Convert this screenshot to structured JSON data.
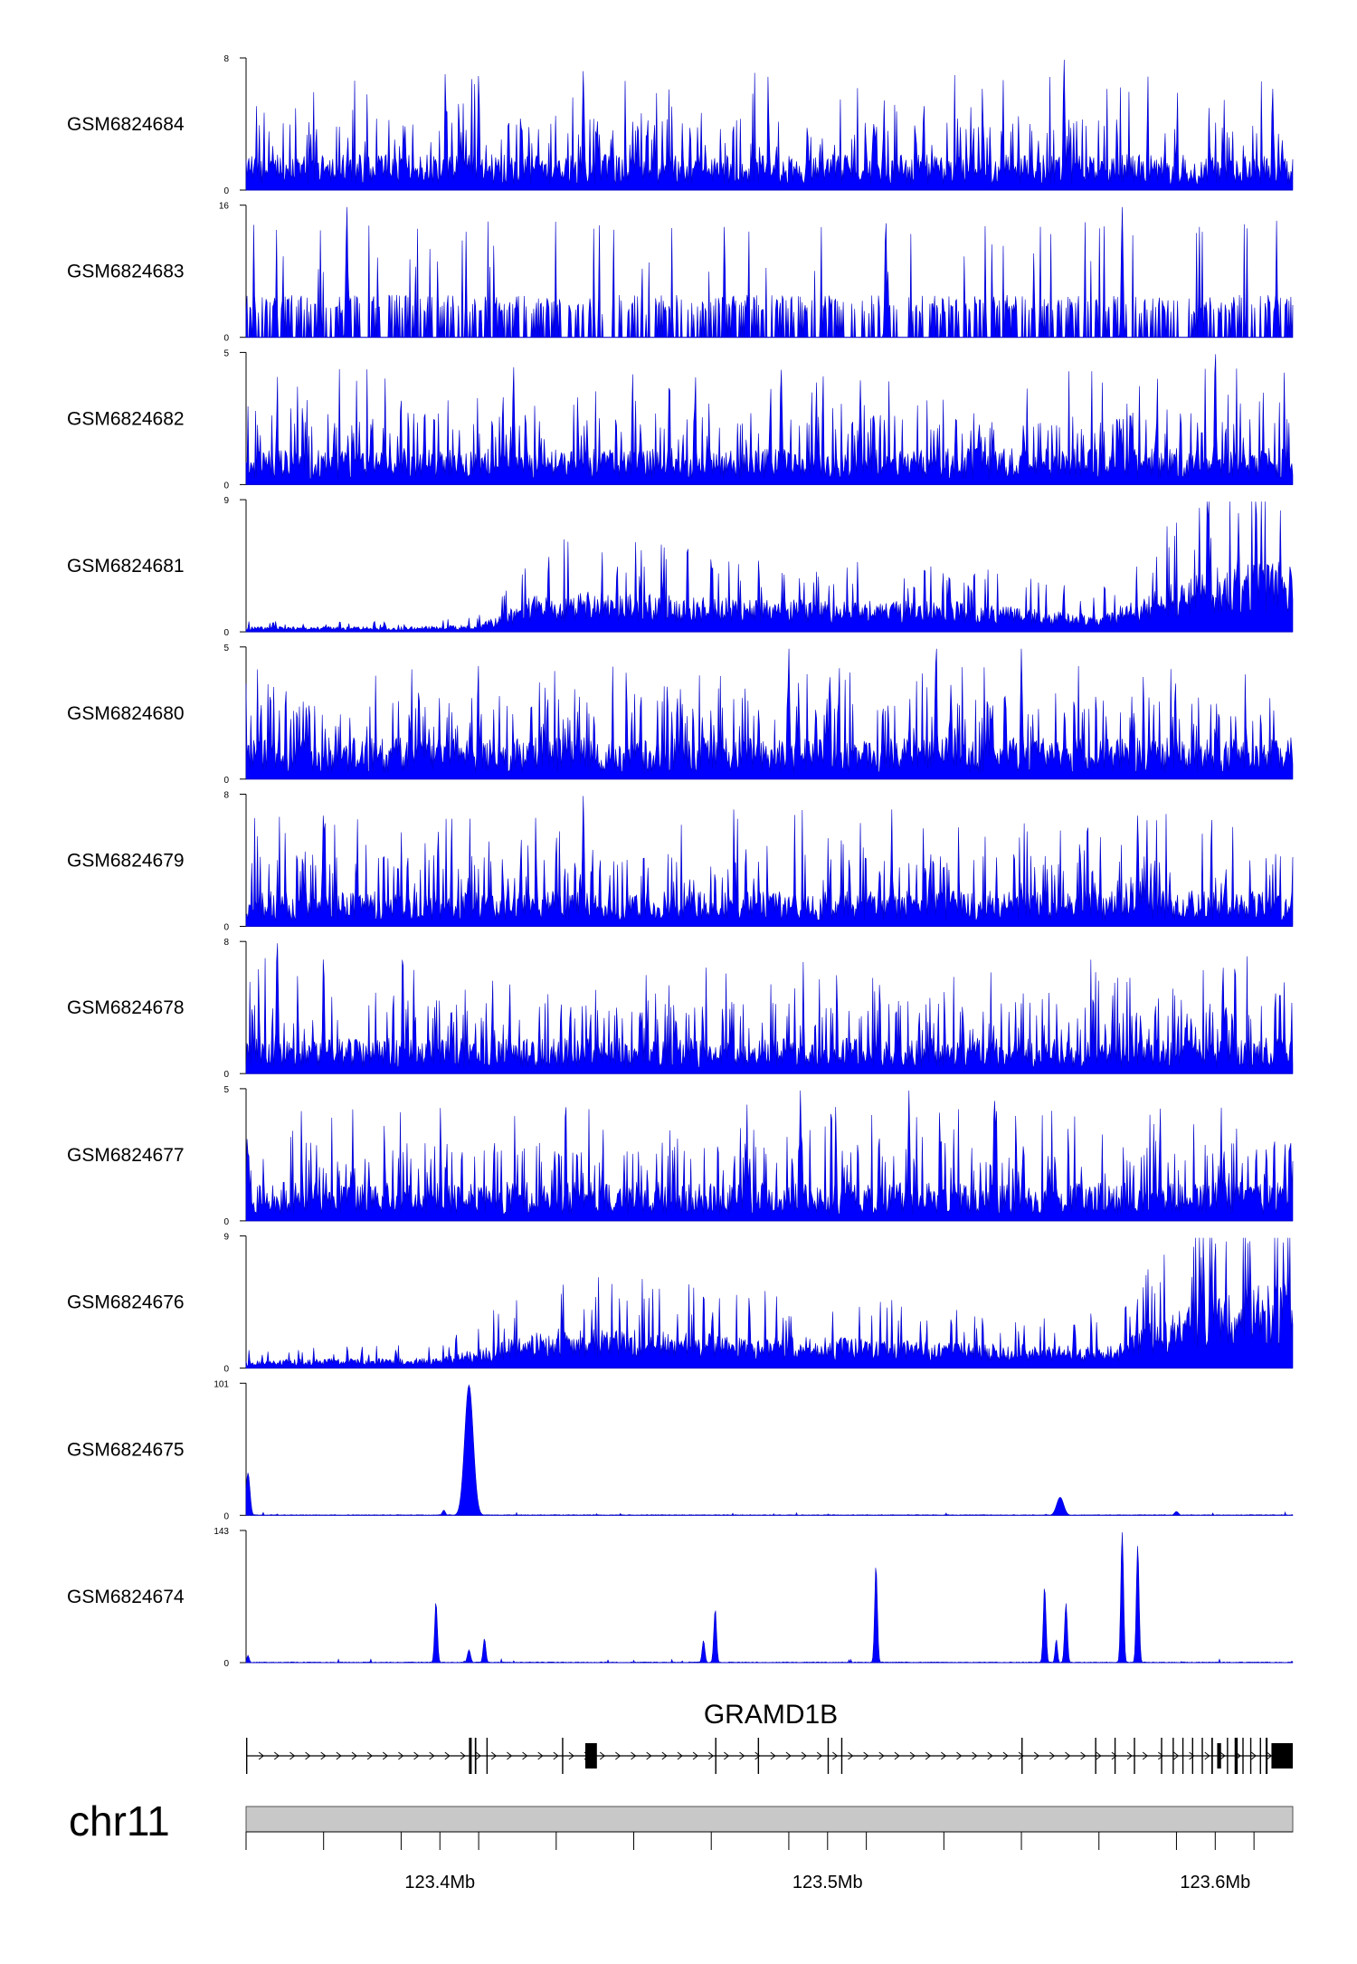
{
  "chart_data": {
    "type": "area",
    "chromosome": "chr11",
    "x_range": [
      123.35,
      123.62
    ],
    "x_unit": "Mb",
    "x_ticks": [
      123.35,
      123.37,
      123.39,
      123.41,
      123.43,
      123.45,
      123.47,
      123.49,
      123.51,
      123.53,
      123.55,
      123.57,
      123.59,
      123.61
    ],
    "x_tick_labels": [
      {
        "value": 123.4,
        "label": "123.4Mb"
      },
      {
        "value": 123.5,
        "label": "123.5Mb"
      },
      {
        "value": 123.6,
        "label": "123.6Mb"
      }
    ],
    "gene": {
      "name": "GRAMD1B",
      "strand": "+",
      "start": 123.35,
      "end": 123.62,
      "exons": [
        [
          123.35,
          123.3503
        ],
        [
          123.4075,
          123.4082
        ],
        [
          123.409,
          123.4094
        ],
        [
          123.412,
          123.4123
        ],
        [
          123.4315,
          123.4318
        ],
        [
          123.4375,
          123.4405
        ],
        [
          123.471,
          123.4713
        ],
        [
          123.482,
          123.4823
        ],
        [
          123.5,
          123.5003
        ],
        [
          123.5035,
          123.5038
        ],
        [
          123.55,
          123.5503
        ],
        [
          123.569,
          123.5693
        ],
        [
          123.574,
          123.5743
        ],
        [
          123.579,
          123.5793
        ],
        [
          123.586,
          123.5863
        ],
        [
          123.589,
          123.5893
        ],
        [
          123.5915,
          123.5918
        ],
        [
          123.594,
          123.5943
        ],
        [
          123.5965,
          123.5968
        ],
        [
          123.599,
          123.5994
        ],
        [
          123.6005,
          123.6015
        ],
        [
          123.603,
          123.6033
        ],
        [
          123.605,
          123.6058
        ],
        [
          123.607,
          123.6073
        ],
        [
          123.609,
          123.6093
        ],
        [
          123.6115,
          123.6118
        ],
        [
          123.613,
          123.6135
        ],
        [
          123.6145,
          123.62
        ]
      ]
    },
    "series": [
      {
        "name": "GSM6824684",
        "ymax": 8,
        "pattern": "noise",
        "base": 2.2,
        "spike_max": 8,
        "peaks": [
          {
            "x": 123.561,
            "y": 8
          },
          {
            "x": 123.437,
            "y": 7.3
          },
          {
            "x": 123.41,
            "y": 7
          }
        ]
      },
      {
        "name": "GSM6824683",
        "ymax": 16,
        "pattern": "sparse",
        "base": 4,
        "spike_max": 16,
        "peaks": [
          {
            "x": 123.376,
            "y": 16
          },
          {
            "x": 123.576,
            "y": 16
          },
          {
            "x": 123.515,
            "y": 14
          }
        ]
      },
      {
        "name": "GSM6824682",
        "ymax": 5,
        "pattern": "noise",
        "base": 1.4,
        "spike_max": 5,
        "peaks": [
          {
            "x": 123.6,
            "y": 5
          },
          {
            "x": 123.488,
            "y": 4.4
          },
          {
            "x": 123.419,
            "y": 4.5
          }
        ]
      },
      {
        "name": "GSM6824681",
        "ymax": 9,
        "pattern": "envelope",
        "base": 1,
        "spike_max": 9,
        "envelope": [
          [
            123.35,
            0.3
          ],
          [
            123.39,
            0.3
          ],
          [
            123.41,
            0.4
          ],
          [
            123.425,
            2.2
          ],
          [
            123.44,
            2.4
          ],
          [
            123.47,
            2.0
          ],
          [
            123.5,
            1.8
          ],
          [
            123.53,
            1.8
          ],
          [
            123.56,
            1.2
          ],
          [
            123.57,
            1.0
          ],
          [
            123.585,
            2.4
          ],
          [
            123.6,
            4.0
          ],
          [
            123.62,
            4.2
          ]
        ],
        "peaks": [
          {
            "x": 123.598,
            "y": 9
          },
          {
            "x": 123.606,
            "y": 8.2
          },
          {
            "x": 123.47,
            "y": 5
          }
        ]
      },
      {
        "name": "GSM6824680",
        "ymax": 5,
        "pattern": "noise",
        "base": 1.6,
        "spike_max": 5,
        "peaks": [
          {
            "x": 123.528,
            "y": 5
          },
          {
            "x": 123.49,
            "y": 5
          },
          {
            "x": 123.55,
            "y": 5
          }
        ]
      },
      {
        "name": "GSM6824679",
        "ymax": 8,
        "pattern": "noise",
        "base": 2.2,
        "spike_max": 8,
        "peaks": [
          {
            "x": 123.437,
            "y": 8
          },
          {
            "x": 123.37,
            "y": 6.8
          },
          {
            "x": 123.58,
            "y": 6.8
          }
        ]
      },
      {
        "name": "GSM6824678",
        "ymax": 8,
        "pattern": "noise",
        "base": 2.2,
        "spike_max": 8,
        "peaks": [
          {
            "x": 123.358,
            "y": 8
          },
          {
            "x": 123.37,
            "y": 7
          },
          {
            "x": 123.602,
            "y": 6.5
          }
        ]
      },
      {
        "name": "GSM6824677",
        "ymax": 5,
        "pattern": "noise",
        "base": 1.5,
        "spike_max": 5,
        "peaks": [
          {
            "x": 123.521,
            "y": 5
          },
          {
            "x": 123.543,
            "y": 4.6
          },
          {
            "x": 123.493,
            "y": 5
          }
        ]
      },
      {
        "name": "GSM6824676",
        "ymax": 9,
        "pattern": "envelope",
        "base": 1,
        "spike_max": 9,
        "envelope": [
          [
            123.35,
            0.5
          ],
          [
            123.4,
            0.6
          ],
          [
            123.425,
            2.2
          ],
          [
            123.44,
            2.4
          ],
          [
            123.47,
            2.0
          ],
          [
            123.5,
            1.8
          ],
          [
            123.53,
            1.6
          ],
          [
            123.56,
            1.3
          ],
          [
            123.575,
            1.4
          ],
          [
            123.585,
            3.0
          ],
          [
            123.6,
            4.5
          ],
          [
            123.62,
            5.0
          ]
        ],
        "peaks": [
          {
            "x": 123.6,
            "y": 8.6
          },
          {
            "x": 123.609,
            "y": 8.2
          },
          {
            "x": 123.597,
            "y": 7.8
          }
        ]
      },
      {
        "name": "GSM6824675",
        "ymax": 101,
        "pattern": "flat",
        "base": 0.6,
        "spike_max": 3,
        "peaks": [
          {
            "x": 123.3505,
            "y": 33,
            "w": 0.0005
          },
          {
            "x": 123.4075,
            "y": 101,
            "w": 0.0011
          },
          {
            "x": 123.401,
            "y": 4,
            "w": 0.0004
          },
          {
            "x": 123.56,
            "y": 14,
            "w": 0.0009
          },
          {
            "x": 123.59,
            "y": 3,
            "w": 0.0005
          }
        ]
      },
      {
        "name": "GSM6824674",
        "ymax": 143,
        "pattern": "flat",
        "base": 0.8,
        "spike_max": 4,
        "peaks": [
          {
            "x": 123.3505,
            "y": 8,
            "w": 0.0003
          },
          {
            "x": 123.399,
            "y": 65,
            "w": 0.00035
          },
          {
            "x": 123.4075,
            "y": 14,
            "w": 0.0004
          },
          {
            "x": 123.4115,
            "y": 26,
            "w": 0.00035
          },
          {
            "x": 123.468,
            "y": 24,
            "w": 0.00035
          },
          {
            "x": 123.471,
            "y": 57,
            "w": 0.00035
          },
          {
            "x": 123.5125,
            "y": 104,
            "w": 0.00035
          },
          {
            "x": 123.556,
            "y": 81,
            "w": 0.00035
          },
          {
            "x": 123.559,
            "y": 25,
            "w": 0.0003
          },
          {
            "x": 123.5615,
            "y": 65,
            "w": 0.00035
          },
          {
            "x": 123.576,
            "y": 143,
            "w": 0.00035
          },
          {
            "x": 123.58,
            "y": 128,
            "w": 0.00035
          }
        ]
      }
    ]
  },
  "colors": {
    "signal": "#0000ff",
    "signal_stroke": "#0000c8",
    "axis": "#000000",
    "ideogram": "#c8c8c8",
    "exon": "#000000"
  }
}
